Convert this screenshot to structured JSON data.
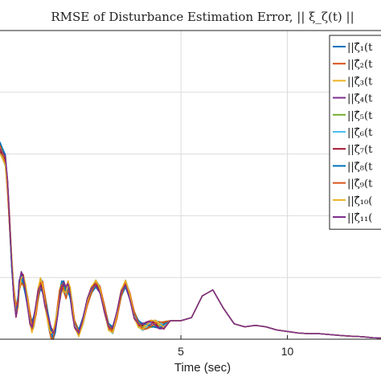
{
  "chart_data": {
    "type": "line",
    "title": "RMSE of Disturbance Estimation Error, || ξ_ζ(t) ||",
    "xlabel": "Time (sec)",
    "ylabel": "",
    "xlim": [
      -3.5,
      14.4
    ],
    "ylim": [
      0,
      1
    ],
    "x_ticks": [
      5,
      10
    ],
    "x_tick_labels": [
      "5",
      "10"
    ],
    "grid": true,
    "legend_position": "top-right",
    "legend_entries": [
      "||ζ̂₁(t",
      "||ζ̂₂(t",
      "||ζ̂₃(t",
      "||ζ̂₄(t",
      "||ζ̂₅(t",
      "||ζ̂₆(t",
      "||ζ̂₇(t",
      "||ζ̂₈(t",
      "||ζ̂₉(t",
      "||ζ̂₁₀(",
      "||ζ̂₁₁("
    ],
    "series_colors": [
      "#0072BD",
      "#D95319",
      "#EDB120",
      "#7E2F8E",
      "#77AC30",
      "#4DBEEE",
      "#A2142F",
      "#0072BD",
      "#D95319",
      "#EDB120",
      "#7E2F8E"
    ],
    "base_curve": {
      "x": [
        -3.5,
        -3.25,
        -3.15,
        -3.05,
        -2.95,
        -2.85,
        -2.75,
        -2.65,
        -2.6,
        -2.5,
        -2.4,
        -2.3,
        -2.2,
        -2.1,
        -2.0,
        -1.9,
        -1.8,
        -1.7,
        -1.6,
        -1.5,
        -1.4,
        -1.3,
        -1.2,
        -1.1,
        -1.0,
        -0.9,
        -0.8,
        -0.7,
        -0.6,
        -0.5,
        -0.4,
        -0.3,
        -0.2,
        -0.1,
        0.0,
        0.2,
        0.4,
        0.6,
        0.8,
        1.0,
        1.2,
        1.4,
        1.6,
        1.8,
        2.0,
        2.2,
        2.4,
        2.6,
        2.8,
        3.0,
        3.2,
        3.4,
        3.6,
        3.8,
        4.0,
        4.2,
        4.5,
        5.0,
        5.5,
        6.0,
        6.5,
        7.0,
        7.5,
        8.0,
        8.5,
        9.0,
        9.5,
        10.0,
        10.5,
        11.0,
        11.5,
        12.0,
        12.5,
        13.0,
        13.5,
        14.0,
        14.4
      ],
      "y": [
        0.62,
        0.58,
        0.5,
        0.38,
        0.25,
        0.15,
        0.09,
        0.12,
        0.17,
        0.2,
        0.19,
        0.16,
        0.12,
        0.07,
        0.04,
        0.06,
        0.1,
        0.15,
        0.18,
        0.17,
        0.13,
        0.09,
        0.05,
        0.02,
        0.01,
        0.04,
        0.09,
        0.14,
        0.17,
        0.17,
        0.15,
        0.17,
        0.15,
        0.1,
        0.05,
        0.02,
        0.06,
        0.12,
        0.16,
        0.18,
        0.16,
        0.1,
        0.04,
        0.03,
        0.08,
        0.15,
        0.18,
        0.14,
        0.08,
        0.05,
        0.04,
        0.045,
        0.05,
        0.05,
        0.045,
        0.045,
        0.06,
        0.06,
        0.07,
        0.14,
        0.16,
        0.1,
        0.05,
        0.04,
        0.045,
        0.04,
        0.03,
        0.025,
        0.02,
        0.018,
        0.018,
        0.015,
        0.012,
        0.01,
        0.008,
        0.005,
        0.004
      ]
    }
  }
}
